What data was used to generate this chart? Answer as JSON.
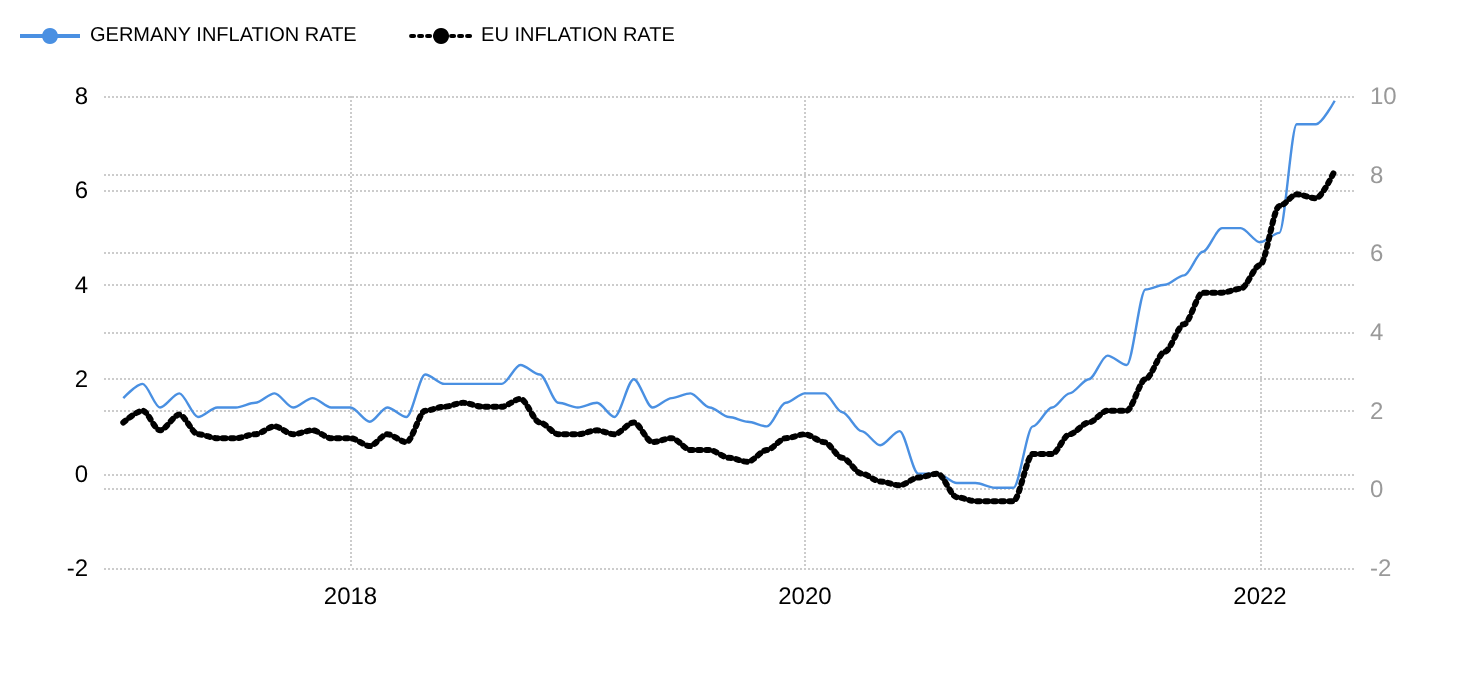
{
  "chart_data": {
    "type": "line",
    "x": [
      "2017-01",
      "2017-02",
      "2017-03",
      "2017-04",
      "2017-05",
      "2017-06",
      "2017-07",
      "2017-08",
      "2017-09",
      "2017-10",
      "2017-11",
      "2017-12",
      "2018-01",
      "2018-02",
      "2018-03",
      "2018-04",
      "2018-05",
      "2018-06",
      "2018-07",
      "2018-08",
      "2018-09",
      "2018-10",
      "2018-11",
      "2018-12",
      "2019-01",
      "2019-02",
      "2019-03",
      "2019-04",
      "2019-05",
      "2019-06",
      "2019-07",
      "2019-08",
      "2019-09",
      "2019-10",
      "2019-11",
      "2019-12",
      "2020-01",
      "2020-02",
      "2020-03",
      "2020-04",
      "2020-05",
      "2020-06",
      "2020-07",
      "2020-08",
      "2020-09",
      "2020-10",
      "2020-11",
      "2020-12",
      "2021-01",
      "2021-02",
      "2021-03",
      "2021-04",
      "2021-05",
      "2021-06",
      "2021-07",
      "2021-08",
      "2021-09",
      "2021-10",
      "2021-11",
      "2021-12",
      "2022-01",
      "2022-02",
      "2022-03",
      "2022-04",
      "2022-05"
    ],
    "series": [
      {
        "name": "GERMANY INFLATION RATE",
        "color": "#4a90e2",
        "line_style": "solid",
        "values": [
          1.6,
          1.9,
          1.4,
          1.7,
          1.2,
          1.4,
          1.4,
          1.5,
          1.7,
          1.4,
          1.6,
          1.4,
          1.4,
          1.1,
          1.4,
          1.2,
          2.1,
          1.9,
          1.9,
          1.9,
          1.9,
          2.3,
          2.1,
          1.5,
          1.4,
          1.5,
          1.2,
          2.0,
          1.4,
          1.6,
          1.7,
          1.4,
          1.2,
          1.1,
          1.0,
          1.5,
          1.7,
          1.7,
          1.3,
          0.9,
          0.6,
          0.9,
          0.0,
          0.0,
          -0.2,
          -0.2,
          -0.3,
          -0.3,
          1.0,
          1.4,
          1.7,
          2.0,
          2.5,
          2.3,
          3.9,
          4.0,
          4.2,
          4.7,
          5.2,
          5.2,
          4.9,
          5.1,
          7.4,
          7.4,
          7.9
        ]
      },
      {
        "name": "EU INFLATION RATE",
        "color": "#000000",
        "line_style": "dotted",
        "axis": "y2",
        "values": [
          1.7,
          2.0,
          1.5,
          1.9,
          1.4,
          1.3,
          1.3,
          1.4,
          1.6,
          1.4,
          1.5,
          1.3,
          1.3,
          1.1,
          1.4,
          1.2,
          2.0,
          2.1,
          2.2,
          2.1,
          2.1,
          2.3,
          1.7,
          1.4,
          1.4,
          1.5,
          1.4,
          1.7,
          1.2,
          1.3,
          1.0,
          1.0,
          0.8,
          0.7,
          1.0,
          1.3,
          1.4,
          1.2,
          0.8,
          0.4,
          0.2,
          0.1,
          0.3,
          0.4,
          -0.2,
          -0.3,
          -0.3,
          -0.3,
          0.9,
          0.9,
          1.4,
          1.7,
          2.0,
          2.0,
          2.8,
          3.5,
          4.2,
          5.0,
          5.0,
          5.1,
          5.7,
          7.2,
          7.5,
          7.4,
          8.1
        ]
      }
    ],
    "xlim": [
      "2016-12",
      "2022-06"
    ],
    "xticks": [
      "2018",
      "2020",
      "2022"
    ],
    "ylim": [
      -2,
      8
    ],
    "yticks": [
      -2,
      0,
      2,
      4,
      6,
      8
    ],
    "y2lim": [
      -2,
      10
    ],
    "y2ticks": [
      -2,
      0,
      2,
      4,
      6,
      8,
      10
    ],
    "grid": true,
    "legend": "top left",
    "marker": "none"
  }
}
